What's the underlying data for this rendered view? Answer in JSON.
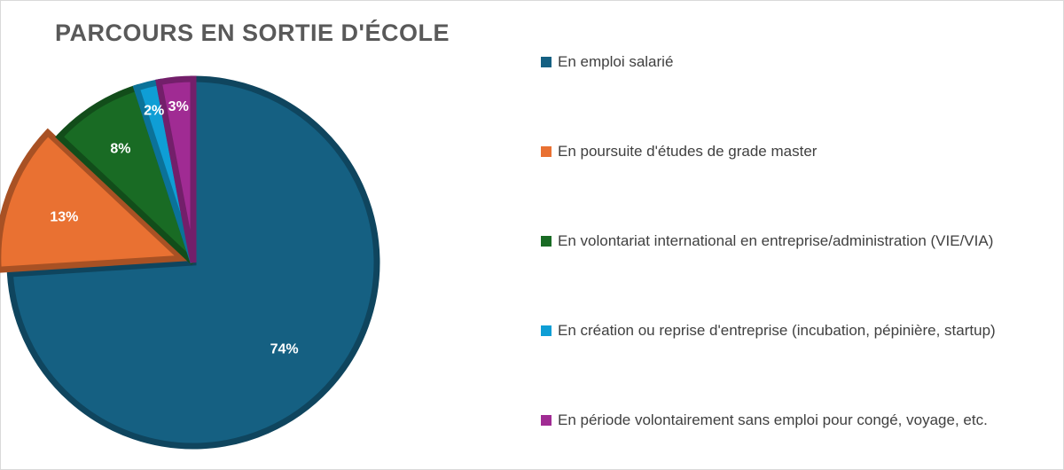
{
  "chart_data": {
    "type": "pie",
    "title": "PARCOURS EN SORTIE D'ÉCOLE",
    "categories": [
      "En emploi salarié",
      "En poursuite d'études de grade master",
      "En volontariat international en entreprise/administration (VIE/VIA)",
      "En création ou reprise d'entreprise (incubation, pépinière, startup)",
      "En période volontairement sans emploi pour congé, voyage, etc."
    ],
    "values": [
      74,
      13,
      8,
      2,
      3
    ],
    "data_labels": [
      "74%",
      "13%",
      "8%",
      "2%",
      "3%"
    ],
    "colors": [
      "#156082",
      "#E97132",
      "#196B24",
      "#0F9ED5",
      "#A02B93"
    ],
    "legend_position": "right",
    "exploded_slices": [
      "En poursuite d'études de grade master"
    ]
  }
}
